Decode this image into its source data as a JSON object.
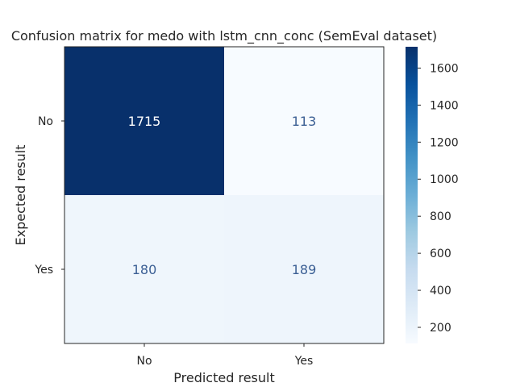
{
  "chart_data": {
    "type": "heatmap",
    "title": "Confusion matrix for medo with lstm_cnn_conc (SemEval dataset)",
    "xlabel": "Predicted result",
    "ylabel": "Expected result",
    "x_categories": [
      "No",
      "Yes"
    ],
    "y_categories": [
      "No",
      "Yes"
    ],
    "values": [
      [
        1715,
        113
      ],
      [
        180,
        189
      ]
    ],
    "colorbar": {
      "colormap": "Blues",
      "vmin": 113,
      "vmax": 1715,
      "ticks": [
        200,
        400,
        600,
        800,
        1000,
        1200,
        1400,
        1600
      ]
    },
    "grid": false
  }
}
